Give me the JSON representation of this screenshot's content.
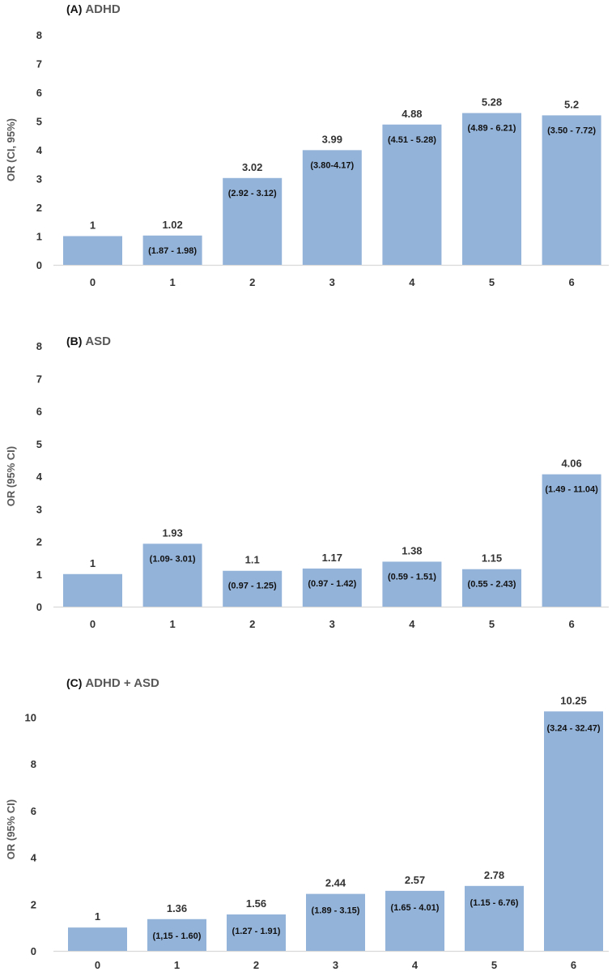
{
  "chart_data": [
    {
      "type": "bar",
      "panel": "(A)",
      "title": "ADHD",
      "ylabel": "OR (CI, 95%)",
      "xlabel": "",
      "ylim": [
        0,
        8
      ],
      "yticks": [
        "0",
        "1",
        "2",
        "3",
        "4",
        "5",
        "6",
        "7",
        "8"
      ],
      "grid": false,
      "categories": [
        "0",
        "1",
        "2",
        "3",
        "4",
        "5",
        "6"
      ],
      "values": [
        1,
        1.02,
        3.02,
        3.99,
        4.88,
        5.28,
        5.2
      ],
      "value_labels": [
        "1",
        "1.02",
        "3.02",
        "3.99",
        "4.88",
        "5.28",
        "5.2"
      ],
      "ci_labels": [
        "",
        "(1.87 - 1.98)",
        "(2.92 - 3.12)",
        "(3.80-4.17)",
        "(4.51 - 5.28)",
        "(4.89 - 6.21)",
        "(3.50 - 7.72)"
      ],
      "bar_color": "#94b3d9"
    },
    {
      "type": "bar",
      "panel": "(B)",
      "title": "ASD",
      "ylabel": "OR (95% CI)",
      "xlabel": "",
      "ylim": [
        0,
        8
      ],
      "yticks": [
        "0",
        "1",
        "2",
        "3",
        "4",
        "5",
        "6",
        "7",
        "8"
      ],
      "grid": false,
      "categories": [
        "0",
        "1",
        "2",
        "3",
        "4",
        "5",
        "6"
      ],
      "values": [
        1,
        1.93,
        1.1,
        1.17,
        1.38,
        1.15,
        4.06
      ],
      "value_labels": [
        "1",
        "1.93",
        "1.1",
        "1.17",
        "1.38",
        "1.15",
        "4.06"
      ],
      "ci_labels": [
        "",
        "(1.09- 3.01)",
        "(0.97 - 1.25)",
        "(0.97 - 1.42)",
        "(0.59 - 1.51)",
        "(0.55 - 2.43)",
        "(1.49 - 11.04)"
      ],
      "bar_color": "#94b3d9"
    },
    {
      "type": "bar",
      "panel": "(C)",
      "title": "ADHD + ASD",
      "ylabel": "OR (95% CI)",
      "xlabel": "",
      "ylim": [
        0,
        10.4
      ],
      "yticks": [
        "0",
        "2",
        "4",
        "6",
        "8",
        "10"
      ],
      "grid": false,
      "categories": [
        "0",
        "1",
        "2",
        "3",
        "4",
        "5",
        "6"
      ],
      "values": [
        1,
        1.36,
        1.56,
        2.44,
        2.57,
        2.78,
        10.25
      ],
      "value_labels": [
        "1",
        "1.36",
        "1.56",
        "2.44",
        "2.57",
        "2.78",
        "10.25"
      ],
      "ci_labels": [
        "",
        "(1,15 - 1.60)",
        "(1.27 - 1.91)",
        "(1.89 - 3.15)",
        "(1.65 - 4.01)",
        "(1.15 - 6.76)",
        "(3.24 - 32.47)"
      ],
      "bar_color": "#94b3d9"
    }
  ]
}
